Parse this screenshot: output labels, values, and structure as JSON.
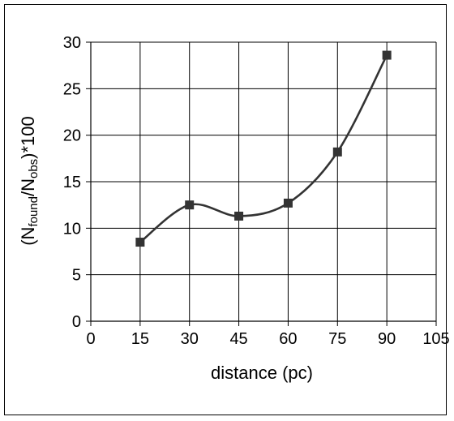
{
  "chart_data": {
    "type": "line",
    "xlabel": "distance (pc)",
    "ylabel": {
      "prefix": "(N",
      "sub1": "found",
      "mid": "/N",
      "sub2": "obs",
      "suffix": ")*100"
    },
    "xlim": [
      0,
      105
    ],
    "ylim": [
      0,
      30
    ],
    "x_ticks": [
      0,
      15,
      30,
      45,
      60,
      75,
      90,
      105
    ],
    "y_ticks": [
      0,
      5,
      10,
      15,
      20,
      25,
      30
    ],
    "grid": true,
    "series": [
      {
        "x": [
          15,
          30,
          45,
          60,
          75,
          90
        ],
        "y": [
          8.5,
          12.5,
          11.3,
          12.7,
          18.2,
          28.6
        ],
        "marker": "square",
        "smooth": true,
        "color": "#333333"
      }
    ]
  }
}
